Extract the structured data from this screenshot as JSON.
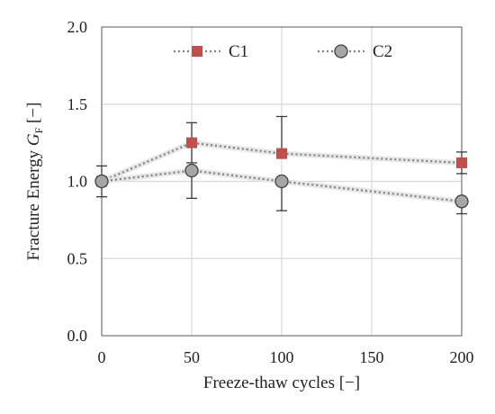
{
  "chart_data": {
    "type": "line",
    "title": "",
    "xlabel": "Freeze-thaw cycles [−]",
    "ylabel": {
      "prefix": "Fracture Energy ",
      "symbol": "G",
      "subscript": "F",
      "suffix": " [−]"
    },
    "x_tick_labels": [
      "0",
      "50",
      "100",
      "150",
      "200"
    ],
    "x_ticks": [
      0,
      50,
      100,
      150,
      200
    ],
    "y_tick_labels": [
      "0.0",
      "0.5",
      "1.0",
      "1.5",
      "2.0"
    ],
    "y_ticks": [
      0.0,
      0.5,
      1.0,
      1.5,
      2.0
    ],
    "xlim": [
      0,
      200
    ],
    "ylim": [
      0,
      2.0
    ],
    "grid": true,
    "legend_position": "top",
    "series": [
      {
        "name": "C1",
        "marker": "square",
        "color": "#c0504d",
        "x": [
          0,
          50,
          100,
          200
        ],
        "y": [
          1.0,
          1.25,
          1.18,
          1.12
        ],
        "err_low": [
          0.0,
          0.13,
          0.0,
          0.07
        ],
        "err_high": [
          0.0,
          0.13,
          0.24,
          0.07
        ]
      },
      {
        "name": "C2",
        "marker": "circle",
        "color": "#a6a6a6",
        "x": [
          0,
          50,
          100,
          200
        ],
        "y": [
          1.0,
          1.07,
          1.0,
          0.87
        ],
        "err_low": [
          0.1,
          0.18,
          0.19,
          0.08
        ],
        "err_high": [
          0.1,
          0.0,
          0.0,
          0.0
        ]
      }
    ]
  }
}
